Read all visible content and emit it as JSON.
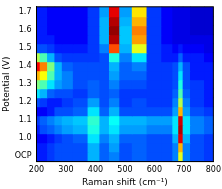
{
  "chart_data": {
    "type": "heatmap",
    "x_label": "Raman shift (cm⁻¹)",
    "y_label": "Potential (V)",
    "x": [
      200,
      225,
      250,
      275,
      300,
      350,
      400,
      430,
      465,
      500,
      550,
      600,
      650,
      675,
      690,
      705,
      740,
      800
    ],
    "y": [
      0.9,
      0.95,
      1.0,
      1.05,
      1.1,
      1.15,
      1.2,
      1.25,
      1.3,
      1.35,
      1.4,
      1.45,
      1.5,
      1.55,
      1.6,
      1.65,
      1.7
    ],
    "z": [
      [
        0.15,
        0.15,
        0.18,
        0.2,
        0.2,
        0.2,
        0.3,
        0.22,
        0.25,
        0.2,
        0.22,
        0.2,
        0.2,
        0.25,
        0.6,
        0.25,
        0.2,
        0.18
      ],
      [
        0.15,
        0.15,
        0.18,
        0.2,
        0.2,
        0.2,
        0.3,
        0.22,
        0.28,
        0.2,
        0.22,
        0.2,
        0.2,
        0.25,
        0.7,
        0.25,
        0.2,
        0.18
      ],
      [
        0.12,
        0.12,
        0.15,
        0.18,
        0.2,
        0.22,
        0.35,
        0.25,
        0.3,
        0.22,
        0.22,
        0.2,
        0.2,
        0.3,
        0.9,
        0.3,
        0.2,
        0.18
      ],
      [
        0.15,
        0.2,
        0.22,
        0.25,
        0.28,
        0.3,
        0.4,
        0.3,
        0.35,
        0.28,
        0.28,
        0.25,
        0.25,
        0.35,
        0.95,
        0.35,
        0.25,
        0.22
      ],
      [
        0.18,
        0.22,
        0.25,
        0.28,
        0.3,
        0.32,
        0.42,
        0.3,
        0.38,
        0.3,
        0.3,
        0.28,
        0.28,
        0.35,
        0.92,
        0.35,
        0.25,
        0.22
      ],
      [
        0.12,
        0.12,
        0.15,
        0.2,
        0.2,
        0.22,
        0.35,
        0.22,
        0.3,
        0.2,
        0.2,
        0.2,
        0.2,
        0.28,
        0.7,
        0.28,
        0.2,
        0.18
      ],
      [
        0.2,
        0.18,
        0.15,
        0.15,
        0.18,
        0.2,
        0.28,
        0.2,
        0.25,
        0.18,
        0.2,
        0.18,
        0.18,
        0.25,
        0.55,
        0.25,
        0.18,
        0.15
      ],
      [
        0.35,
        0.3,
        0.22,
        0.2,
        0.2,
        0.18,
        0.22,
        0.2,
        0.22,
        0.18,
        0.18,
        0.18,
        0.18,
        0.22,
        0.45,
        0.22,
        0.18,
        0.15
      ],
      [
        0.5,
        0.45,
        0.35,
        0.28,
        0.25,
        0.2,
        0.22,
        0.2,
        0.25,
        0.2,
        0.2,
        0.18,
        0.18,
        0.2,
        0.4,
        0.2,
        0.18,
        0.15
      ],
      [
        0.7,
        0.62,
        0.45,
        0.3,
        0.25,
        0.2,
        0.2,
        0.2,
        0.28,
        0.22,
        0.22,
        0.18,
        0.18,
        0.2,
        0.35,
        0.2,
        0.15,
        0.15
      ],
      [
        0.88,
        0.75,
        0.5,
        0.3,
        0.22,
        0.2,
        0.2,
        0.2,
        0.3,
        0.22,
        0.25,
        0.18,
        0.18,
        0.2,
        0.3,
        0.2,
        0.15,
        0.15
      ],
      [
        0.55,
        0.45,
        0.3,
        0.2,
        0.18,
        0.18,
        0.18,
        0.2,
        0.4,
        0.25,
        0.35,
        0.18,
        0.15,
        0.15,
        0.22,
        0.15,
        0.15,
        0.12
      ],
      [
        0.2,
        0.2,
        0.18,
        0.15,
        0.15,
        0.15,
        0.18,
        0.25,
        0.8,
        0.3,
        0.6,
        0.18,
        0.15,
        0.12,
        0.15,
        0.12,
        0.12,
        0.1
      ],
      [
        0.15,
        0.15,
        0.15,
        0.12,
        0.12,
        0.12,
        0.18,
        0.3,
        0.95,
        0.32,
        0.72,
        0.18,
        0.12,
        0.1,
        0.1,
        0.1,
        0.1,
        0.1
      ],
      [
        0.15,
        0.15,
        0.12,
        0.12,
        0.12,
        0.12,
        0.18,
        0.3,
        0.98,
        0.32,
        0.75,
        0.18,
        0.12,
        0.1,
        0.1,
        0.1,
        0.08,
        0.08
      ],
      [
        0.15,
        0.15,
        0.12,
        0.12,
        0.12,
        0.12,
        0.18,
        0.3,
        0.95,
        0.3,
        0.7,
        0.18,
        0.12,
        0.1,
        0.1,
        0.1,
        0.08,
        0.08
      ],
      [
        0.15,
        0.15,
        0.12,
        0.12,
        0.12,
        0.12,
        0.18,
        0.28,
        0.9,
        0.28,
        0.65,
        0.18,
        0.12,
        0.1,
        0.1,
        0.1,
        0.08,
        0.08
      ]
    ],
    "zlim": [
      0,
      1
    ],
    "xlim": [
      200,
      800
    ],
    "xticks": [
      200,
      300,
      400,
      500,
      600,
      700,
      800
    ],
    "ylim": [
      0.87,
      1.73
    ],
    "yticks": [
      {
        "value": 0.9,
        "label": "OCP"
      },
      {
        "value": 1,
        "label": "1.0"
      },
      1.1,
      1.2,
      1.3,
      1.4,
      1.5,
      1.6,
      1.7
    ],
    "grid": false
  }
}
